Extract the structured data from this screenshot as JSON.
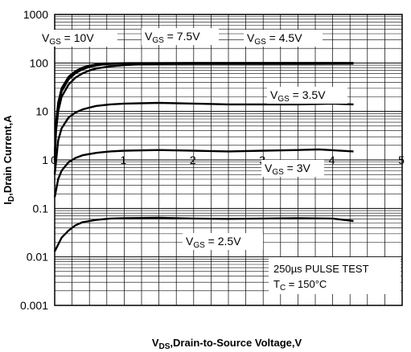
{
  "chart_data": {
    "type": "line",
    "scale": {
      "x": "linear",
      "y": "log"
    },
    "xlabel": {
      "main": "V",
      "sub": "DS",
      "rest": ",Drain-to-Source  Voltage,V"
    },
    "ylabel": {
      "main": "I",
      "sub": "D",
      "rest": ",Drain Current,A"
    },
    "xlim": [
      0,
      5
    ],
    "ylim": [
      0.001,
      1000
    ],
    "x_ticks": [
      "0",
      "1",
      "2",
      "3",
      "4",
      "5"
    ],
    "y_ticks": [
      "0.001",
      "0.01",
      "0.1",
      "1",
      "10",
      "100",
      "1000"
    ],
    "grid": true,
    "series": [
      {
        "name": "VGS = 10V",
        "label": {
          "pre": "V",
          "sub": "GS",
          "post": " = 10V"
        },
        "points": [
          [
            0.0,
            1.0
          ],
          [
            0.02,
            6
          ],
          [
            0.05,
            15
          ],
          [
            0.1,
            30
          ],
          [
            0.2,
            52
          ],
          [
            0.3,
            68
          ],
          [
            0.4,
            80
          ],
          [
            0.5,
            88
          ],
          [
            0.6,
            94
          ],
          [
            0.7,
            97
          ],
          [
            0.8,
            98
          ],
          [
            1.0,
            99
          ],
          [
            2.0,
            100
          ],
          [
            3.0,
            100
          ],
          [
            4.3,
            100
          ]
        ]
      },
      {
        "name": "VGS = 7.5V",
        "label": {
          "pre": "V",
          "sub": "GS",
          "post": " = 7.5V"
        },
        "points": [
          [
            0.0,
            1.0
          ],
          [
            0.02,
            5
          ],
          [
            0.05,
            13
          ],
          [
            0.1,
            26
          ],
          [
            0.2,
            46
          ],
          [
            0.3,
            62
          ],
          [
            0.4,
            74
          ],
          [
            0.5,
            83
          ],
          [
            0.6,
            89
          ],
          [
            0.7,
            93
          ],
          [
            0.8,
            96
          ],
          [
            1.0,
            98
          ],
          [
            2.0,
            99
          ],
          [
            3.0,
            99
          ],
          [
            4.3,
            99
          ]
        ]
      },
      {
        "name": "VGS = 4.5V",
        "label": {
          "pre": "V",
          "sub": "GS",
          "post": " = 4.5V"
        },
        "points": [
          [
            0.0,
            0.9
          ],
          [
            0.02,
            4
          ],
          [
            0.05,
            10
          ],
          [
            0.1,
            20
          ],
          [
            0.2,
            36
          ],
          [
            0.3,
            50
          ],
          [
            0.4,
            61
          ],
          [
            0.5,
            70
          ],
          [
            0.6,
            77
          ],
          [
            0.8,
            85
          ],
          [
            1.0,
            90
          ],
          [
            1.2,
            93
          ],
          [
            1.5,
            95
          ],
          [
            2.0,
            96
          ],
          [
            3.0,
            96
          ],
          [
            4.3,
            97
          ]
        ]
      },
      {
        "name": "VGS = 3.5V",
        "label": {
          "pre": "V",
          "sub": "GS",
          "post": " = 3.5V"
        },
        "points": [
          [
            0.0,
            0.5
          ],
          [
            0.05,
            2.5
          ],
          [
            0.1,
            4.5
          ],
          [
            0.2,
            7.5
          ],
          [
            0.3,
            9.5
          ],
          [
            0.4,
            11
          ],
          [
            0.5,
            12
          ],
          [
            0.6,
            13
          ],
          [
            0.8,
            14
          ],
          [
            1.0,
            14.5
          ],
          [
            1.5,
            15
          ],
          [
            2.0,
            14.5
          ],
          [
            2.5,
            14
          ],
          [
            3.0,
            14
          ],
          [
            3.5,
            14
          ],
          [
            4.0,
            14.5
          ],
          [
            4.3,
            14
          ]
        ]
      },
      {
        "name": "VGS = 3V",
        "label": {
          "pre": "V",
          "sub": "GS",
          "post": " = 3V"
        },
        "points": [
          [
            0.0,
            0.17
          ],
          [
            0.05,
            0.4
          ],
          [
            0.1,
            0.6
          ],
          [
            0.2,
            0.9
          ],
          [
            0.3,
            1.1
          ],
          [
            0.4,
            1.25
          ],
          [
            0.6,
            1.4
          ],
          [
            0.8,
            1.5
          ],
          [
            1.0,
            1.55
          ],
          [
            1.5,
            1.6
          ],
          [
            2.0,
            1.55
          ],
          [
            2.5,
            1.5
          ],
          [
            3.0,
            1.55
          ],
          [
            3.5,
            1.6
          ],
          [
            3.8,
            1.65
          ],
          [
            4.3,
            1.5
          ]
        ]
      },
      {
        "name": "VGS = 2.5V",
        "label": {
          "pre": "V",
          "sub": "GS",
          "post": " = 2.5V"
        },
        "points": [
          [
            0.0,
            0.013
          ],
          [
            0.05,
            0.018
          ],
          [
            0.1,
            0.025
          ],
          [
            0.2,
            0.035
          ],
          [
            0.3,
            0.045
          ],
          [
            0.4,
            0.052
          ],
          [
            0.6,
            0.058
          ],
          [
            0.8,
            0.062
          ],
          [
            1.0,
            0.063
          ],
          [
            1.5,
            0.064
          ],
          [
            2.0,
            0.062
          ],
          [
            2.5,
            0.061
          ],
          [
            3.0,
            0.062
          ],
          [
            3.5,
            0.063
          ],
          [
            4.0,
            0.062
          ],
          [
            4.3,
            0.055
          ]
        ]
      }
    ],
    "annotations": [
      {
        "text": "250µs PULSE TEST"
      },
      {
        "pre": "T",
        "sub": "C",
        "post": " = 150°C"
      }
    ]
  }
}
